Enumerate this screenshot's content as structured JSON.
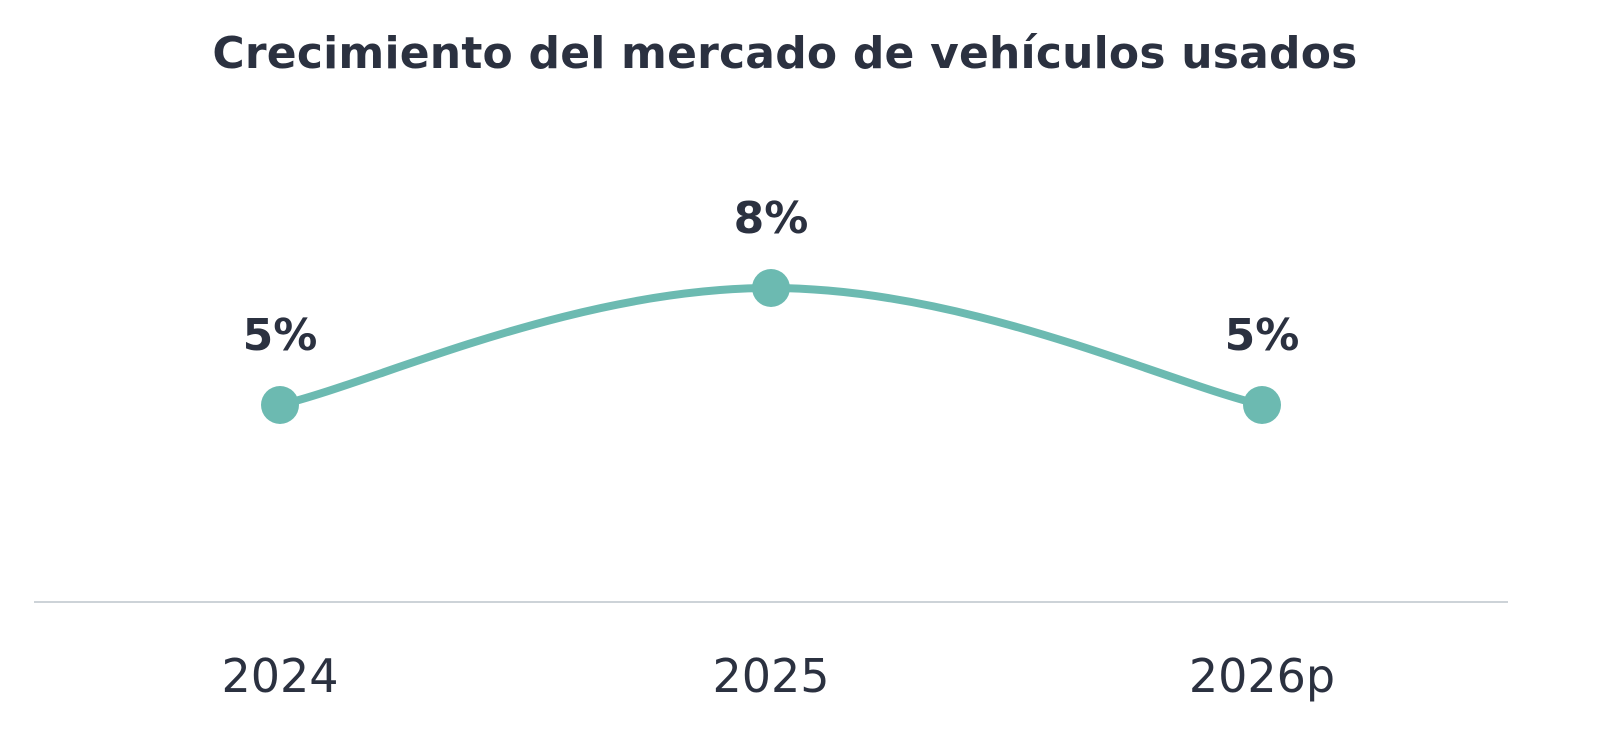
{
  "chart_data": {
    "type": "line",
    "title": "Crecimiento del mercado de vehículos usados",
    "categories": [
      "2024",
      "2025",
      "2026p"
    ],
    "values": [
      5,
      8,
      5
    ],
    "data_labels": [
      "5%",
      "8%",
      "5%"
    ],
    "unit": "%",
    "xlabel": "",
    "ylabel": "",
    "ylim": [
      0,
      10
    ],
    "grid": false,
    "smooth": true,
    "colors": {
      "line": "#6cbab1",
      "text": "#2b3140",
      "axis": "#cdd3d8"
    }
  }
}
